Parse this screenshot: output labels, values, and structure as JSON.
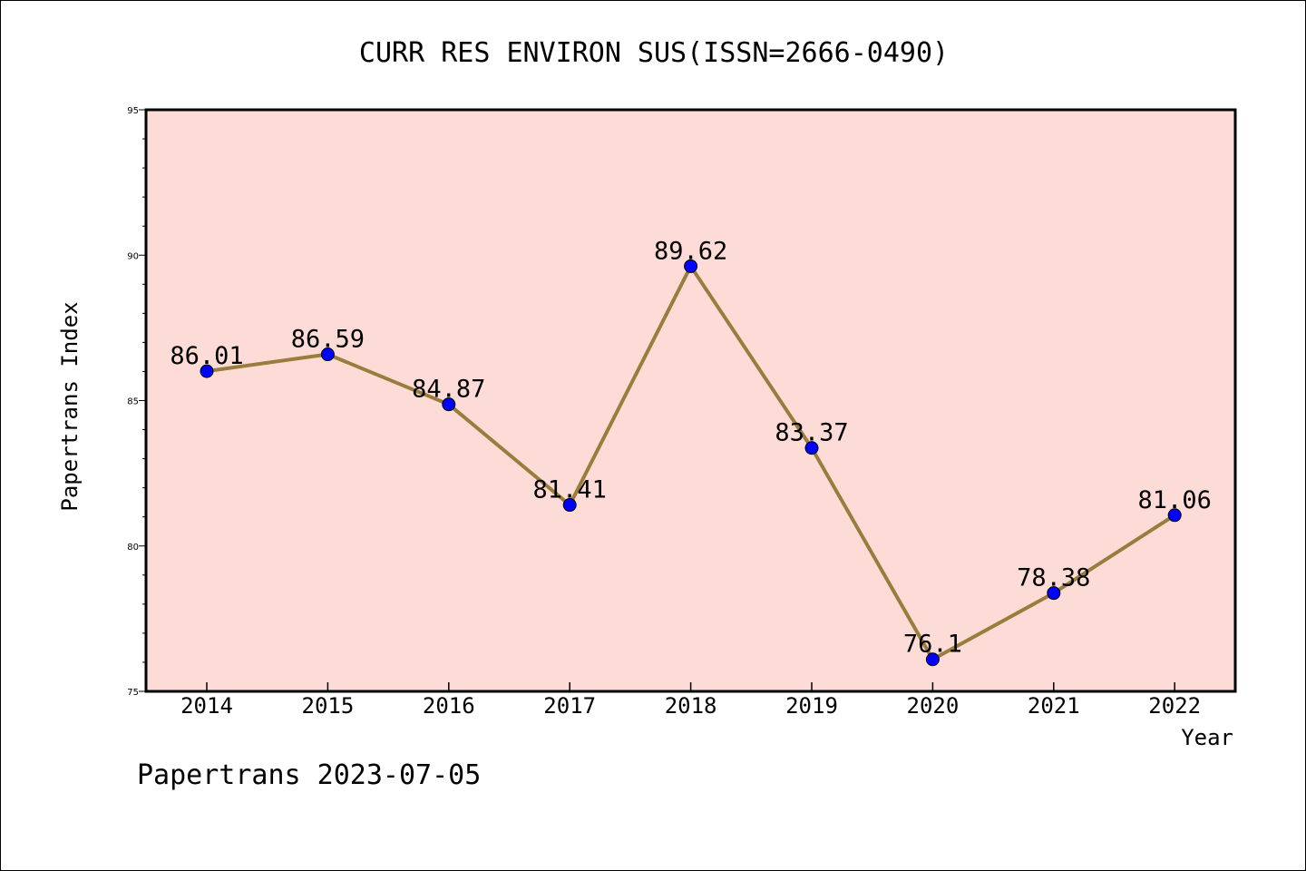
{
  "chart_data": {
    "type": "line",
    "title": "CURR RES ENVIRON SUS(ISSN=2666-0490)",
    "xlabel": "Year",
    "ylabel": "Papertrans Index",
    "categories": [
      "2014",
      "2015",
      "2016",
      "2017",
      "2018",
      "2019",
      "2020",
      "2021",
      "2022"
    ],
    "series": [
      {
        "values": [
          86.01,
          86.59,
          84.87,
          81.41,
          89.62,
          83.37,
          76.1,
          78.38,
          81.06
        ],
        "labels": [
          "86.01",
          "86.59",
          "84.87",
          "81.41",
          "89.62",
          "83.37",
          "76.1",
          "78.38",
          "81.06"
        ]
      }
    ],
    "ylim": [
      75,
      95
    ],
    "yticks": [
      "75",
      "80",
      "85",
      "90",
      "95"
    ],
    "grid": false,
    "colors": {
      "plot_background": "#fddcd8",
      "line": "#9a7d3c",
      "marker": "#0000ff"
    }
  },
  "footer": {
    "text": "Papertrans 2023-07-05"
  }
}
